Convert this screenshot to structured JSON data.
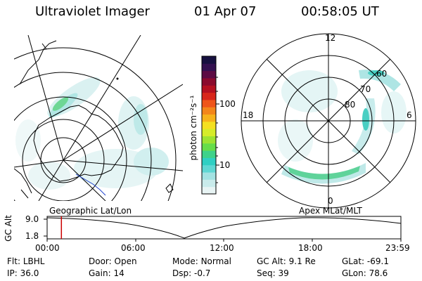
{
  "header": {
    "instrument": "Ultraviolet Imager",
    "date": "01 Apr 07",
    "time": "00:58:05 UT"
  },
  "colorbar": {
    "unit_label": "photon cm⁻²s⁻¹",
    "tick_labels": [
      "100",
      "10"
    ],
    "colors": [
      "#e8f4f4",
      "#c9ebeb",
      "#a3e2e2",
      "#5fd7d3",
      "#2fcfc3",
      "#3ed28a",
      "#66dd4a",
      "#9ee332",
      "#d6ec2a",
      "#f4e020",
      "#f7b21b",
      "#f3861a",
      "#ee551a",
      "#d8261a",
      "#b41020",
      "#8a0a2d",
      "#5c0b43",
      "#331050",
      "#16103f"
    ]
  },
  "polar_map": {
    "mlt_labels": {
      "top": "12",
      "left": "18",
      "right": "6",
      "bottom": "0"
    },
    "lat_labels": [
      "60",
      "70",
      "80"
    ]
  },
  "timeline": {
    "gc_alt_label": "GC Alt",
    "y_max": "9.0",
    "y_min": "1.8",
    "left_caption": "Geographic Lat/Lon",
    "right_caption": "Apex MLat/MLT",
    "time_ticks": [
      "00:00",
      "06:00",
      "12:00",
      "18:00",
      "23:59"
    ],
    "marker_time": "00:58"
  },
  "status": {
    "flt_label": "Flt:",
    "flt_value": "LBHL",
    "door_label": "Door:",
    "door_value": "Open",
    "mode_label": "Mode:",
    "mode_value": "Normal",
    "gcalt_label": "GC Alt:",
    "gcalt_value": "9.1 Re",
    "glat_label": "GLat:",
    "glat_value": "-69.1",
    "ip_label": "IP:",
    "ip_value": "36.0",
    "gain_label": "Gain:",
    "gain_value": "14",
    "dsp_label": "Dsp:",
    "dsp_value": "-0.7",
    "seq_label": "Seq:",
    "seq_value": "39",
    "glon_label": "GLon:",
    "glon_value": "78.6"
  }
}
